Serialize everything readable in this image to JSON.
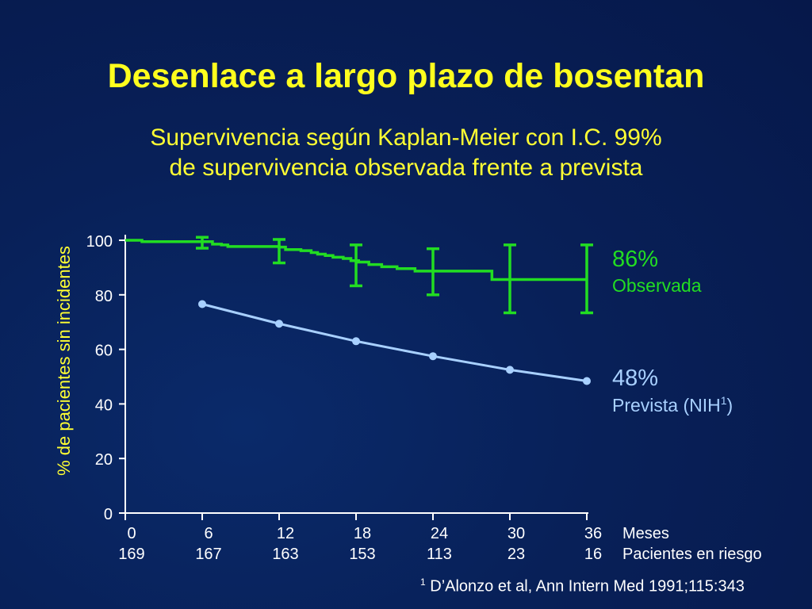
{
  "slide": {
    "title": "Desenlace a largo plazo de bosentan",
    "subtitle_line1": "Supervivencia según Kaplan-Meier con I.C.  99%",
    "subtitle_line2": "de supervivencia observada frente a prevista",
    "footnote_marker": "1",
    "footnote_text": " D’Alonzo et al, Ann Intern Med 1991;115:343"
  },
  "colors": {
    "title": "#ffff1e",
    "observed": "#22dd22",
    "predicted": "#a8d0ff",
    "axis": "#ffffff"
  },
  "chart_data": {
    "type": "line",
    "ylabel": "% de pacientes sin incidentes",
    "xlabel": "Meses",
    "at_risk_label": "Pacientes en riesgo",
    "x_ticks": [
      0,
      6,
      12,
      18,
      24,
      30,
      36
    ],
    "y_ticks": [
      0,
      20,
      40,
      60,
      80,
      100
    ],
    "xlim": [
      0,
      36
    ],
    "ylim": [
      0,
      100
    ],
    "at_risk": [
      "169",
      "167",
      "163",
      "153",
      "113",
      "23",
      "16"
    ],
    "observed": {
      "name": "Observada",
      "end_label": "86%",
      "step_points": [
        [
          0,
          100
        ],
        [
          1.3,
          99.5
        ],
        [
          6,
          99.5
        ],
        [
          6.8,
          98.6
        ],
        [
          7.5,
          98.3
        ],
        [
          8,
          97.7
        ],
        [
          12,
          97.5
        ],
        [
          12.5,
          96.6
        ],
        [
          13.7,
          96.2
        ],
        [
          14.5,
          95.5
        ],
        [
          15,
          94.9
        ],
        [
          15.6,
          94.4
        ],
        [
          16.2,
          93.8
        ],
        [
          17,
          93.3
        ],
        [
          17.6,
          92.5
        ],
        [
          18.2,
          92
        ],
        [
          19,
          91.1
        ],
        [
          20,
          90.3
        ],
        [
          21.2,
          89.6
        ],
        [
          22.6,
          88.7
        ],
        [
          28.6,
          85.6
        ],
        [
          36,
          85.6
        ]
      ],
      "ci_bars": [
        {
          "x": 6,
          "low": 97.1,
          "high": 101.1
        },
        {
          "x": 12,
          "low": 91.7,
          "high": 100.3
        },
        {
          "x": 18,
          "low": 83.3,
          "high": 98.3
        },
        {
          "x": 24,
          "low": 80,
          "high": 96.9
        },
        {
          "x": 30,
          "low": 73.4,
          "high": 98.3
        },
        {
          "x": 36,
          "low": 73.4,
          "high": 98.3
        }
      ]
    },
    "predicted": {
      "name": "Prevista (NIH",
      "name_sup": "1",
      "name_suffix": ")",
      "end_label": "48%",
      "points": [
        [
          6,
          76.6
        ],
        [
          12,
          69.4
        ],
        [
          18,
          63
        ],
        [
          24,
          57.5
        ],
        [
          30,
          52.5
        ],
        [
          36,
          48.4
        ]
      ]
    }
  }
}
